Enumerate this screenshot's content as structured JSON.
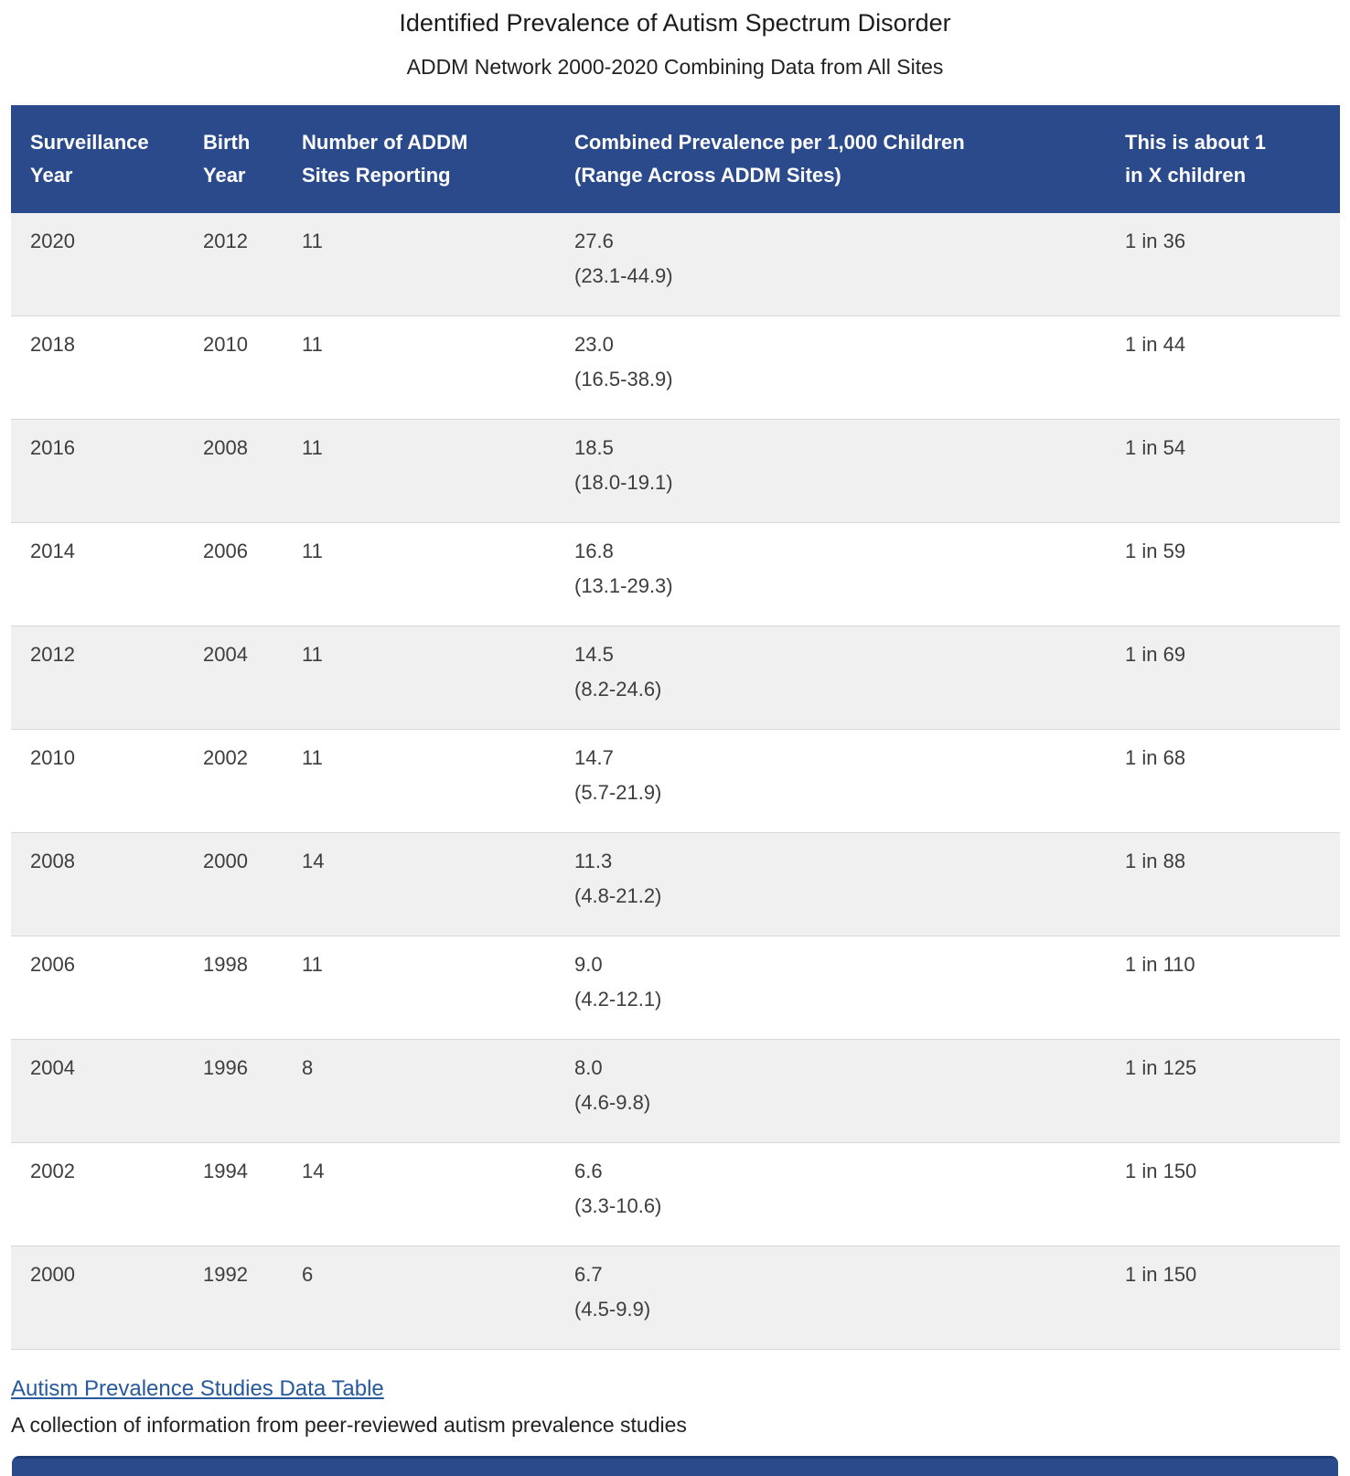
{
  "page": {
    "title": "Identified Prevalence of Autism Spectrum Disorder",
    "subtitle": "ADDM Network 2000-2020 Combining Data from All Sites"
  },
  "colors": {
    "header_bg": "#2b4a8c",
    "row_stripe": "#f0f0f0",
    "row_border": "#d8d8d8",
    "link": "#27599c",
    "accordion_bar": "#2b4a8c"
  },
  "table": {
    "columns": [
      {
        "line1": "Surveillance",
        "line2": "Year"
      },
      {
        "line1": "Birth",
        "line2": "Year"
      },
      {
        "line1": "Number of ADDM",
        "line2": "Sites Reporting"
      },
      {
        "line1": "Combined Prevalence per 1,000 Children",
        "line2": "(Range Across ADDM Sites)"
      },
      {
        "line1": "This is about 1",
        "line2": "in X children"
      }
    ],
    "rows": [
      {
        "surveillance_year": "2020",
        "birth_year": "2012",
        "sites": "11",
        "prevalence": "27.6",
        "range": "(23.1-44.9)",
        "ratio": "1 in 36"
      },
      {
        "surveillance_year": "2018",
        "birth_year": "2010",
        "sites": "11",
        "prevalence": "23.0",
        "range": "(16.5-38.9)",
        "ratio": "1 in 44"
      },
      {
        "surveillance_year": "2016",
        "birth_year": "2008",
        "sites": "11",
        "prevalence": "18.5",
        "range": "(18.0-19.1)",
        "ratio": "1 in 54"
      },
      {
        "surveillance_year": "2014",
        "birth_year": "2006",
        "sites": "11",
        "prevalence": "16.8",
        "range": "(13.1-29.3)",
        "ratio": "1 in 59"
      },
      {
        "surveillance_year": "2012",
        "birth_year": "2004",
        "sites": "11",
        "prevalence": "14.5",
        "range": "(8.2-24.6)",
        "ratio": "1 in 69"
      },
      {
        "surveillance_year": "2010",
        "birth_year": "2002",
        "sites": "11",
        "prevalence": "14.7",
        "range": "(5.7-21.9)",
        "ratio": "1 in 68"
      },
      {
        "surveillance_year": "2008",
        "birth_year": "2000",
        "sites": "14",
        "prevalence": "11.3",
        "range": "(4.8-21.2)",
        "ratio": "1 in 88"
      },
      {
        "surveillance_year": "2006",
        "birth_year": "1998",
        "sites": "11",
        "prevalence": "9.0",
        "range": "(4.2-12.1)",
        "ratio": "1 in 110"
      },
      {
        "surveillance_year": "2004",
        "birth_year": "1996",
        "sites": "8",
        "prevalence": "8.0",
        "range": "(4.6-9.8)",
        "ratio": "1 in 125"
      },
      {
        "surveillance_year": "2002",
        "birth_year": "1994",
        "sites": "14",
        "prevalence": "6.6",
        "range": "(3.3-10.6)",
        "ratio": "1 in 150"
      },
      {
        "surveillance_year": "2000",
        "birth_year": "1992",
        "sites": "6",
        "prevalence": "6.7",
        "range": "(4.5-9.9)",
        "ratio": "1 in 150"
      }
    ]
  },
  "footer": {
    "link_label": "Autism Prevalence Studies Data Table",
    "link_description": "A collection of information from peer-reviewed autism prevalence studies"
  }
}
